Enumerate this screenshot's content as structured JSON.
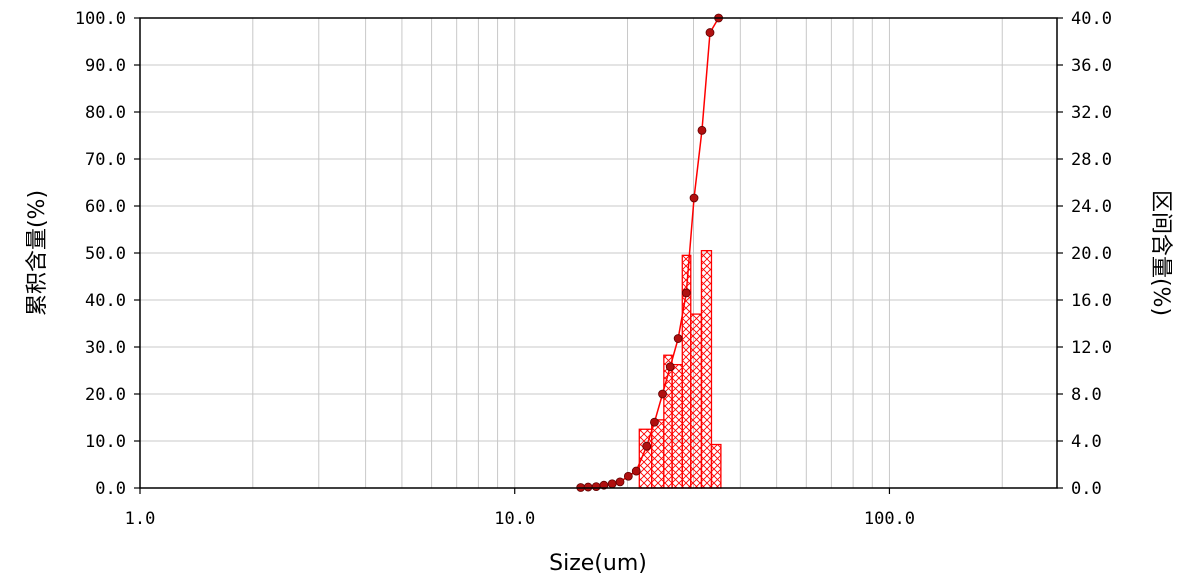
{
  "chart_data": {
    "type": "bar",
    "xlabel": "Size(um)",
    "ylabel": "累积含量(%)",
    "ylabel_right": "区间含量(%)",
    "x_scale": "log",
    "xlim": [
      1,
      280
    ],
    "ylim": [
      0,
      100
    ],
    "ylim_right": [
      0,
      40
    ],
    "x_ticks": [
      1,
      10,
      100
    ],
    "x_tick_labels": [
      "1.0",
      "10.0",
      "100.0"
    ],
    "y_ticks": [
      0,
      10,
      20,
      30,
      40,
      50,
      60,
      70,
      80,
      90,
      100
    ],
    "y_tick_labels": [
      "0.0",
      "10.0",
      "20.0",
      "30.0",
      "40.0",
      "50.0",
      "60.0",
      "70.0",
      "80.0",
      "90.0",
      "100.0"
    ],
    "y_right_ticks": [
      0,
      4,
      8,
      12,
      16,
      20,
      24,
      28,
      32,
      36,
      40
    ],
    "y_right_tick_labels": [
      "0.0",
      "4.0",
      "8.0",
      "12.0",
      "16.0",
      "20.0",
      "24.0",
      "28.0",
      "32.0",
      "36.0",
      "40.0"
    ],
    "grid": true,
    "colors": {
      "series": "#ff0000",
      "marker": "#b01010",
      "grid": "#c8c8c8",
      "axis": "#000000"
    },
    "histogram": {
      "name": "区间含量",
      "axis": "right",
      "bins": [
        {
          "x0": 21.5,
          "x1": 23.2,
          "value": 5.0
        },
        {
          "x0": 23.2,
          "x1": 25.0,
          "value": 5.8
        },
        {
          "x0": 25.0,
          "x1": 26.3,
          "value": 11.3
        },
        {
          "x0": 26.3,
          "x1": 28.0,
          "value": 10.5
        },
        {
          "x0": 28.0,
          "x1": 29.5,
          "value": 19.8
        },
        {
          "x0": 29.5,
          "x1": 31.5,
          "value": 14.8
        },
        {
          "x0": 31.5,
          "x1": 33.5,
          "value": 20.2
        },
        {
          "x0": 33.5,
          "x1": 35.5,
          "value": 3.7
        }
      ]
    },
    "cumulative": {
      "name": "累积含量",
      "axis": "left",
      "x": [
        15.0,
        15.7,
        16.5,
        17.3,
        18.2,
        19.1,
        20.1,
        21.1,
        22.5,
        23.6,
        24.8,
        26.0,
        27.3,
        28.7,
        30.1,
        31.6,
        33.2,
        35.0
      ],
      "y": [
        0.1,
        0.2,
        0.3,
        0.6,
        0.9,
        1.3,
        2.5,
        3.6,
        8.9,
        14.0,
        20.0,
        25.8,
        31.8,
        41.5,
        61.7,
        76.1,
        96.9,
        100.0
      ]
    }
  }
}
